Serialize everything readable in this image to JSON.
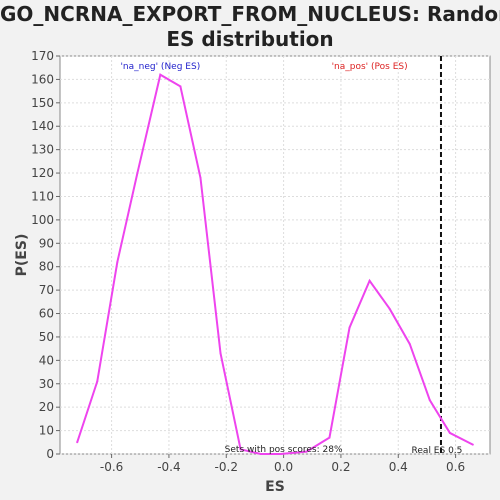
{
  "chart_data": {
    "type": "line",
    "title_line1": "GO_NCRNA_EXPORT_FROM_NUCLEUS: Random",
    "title_line2": "ES distribution",
    "xlabel": "ES",
    "ylabel": "P(ES)",
    "xlim": [
      -0.78,
      0.72
    ],
    "ylim": [
      0,
      170
    ],
    "x_ticks": [
      -0.6,
      -0.4,
      -0.2,
      0.0,
      0.2,
      0.4,
      0.6
    ],
    "x_tick_labels": [
      "-0.6",
      "-0.4",
      "-0.2",
      "0.0",
      "0.2",
      "0.4",
      "0.6"
    ],
    "y_ticks": [
      0,
      10,
      20,
      30,
      40,
      50,
      60,
      70,
      80,
      90,
      100,
      110,
      120,
      130,
      140,
      150,
      160,
      170
    ],
    "grid": true,
    "series": [
      {
        "color": "#ee44ee",
        "x": [
          -0.72,
          -0.65,
          -0.58,
          -0.51,
          -0.43,
          -0.36,
          -0.29,
          -0.22,
          -0.15,
          -0.08,
          -0.01,
          0.08,
          0.16,
          0.23,
          0.3,
          0.37,
          0.44,
          0.51,
          0.58,
          0.66
        ],
        "y": [
          5,
          31,
          82,
          120,
          162,
          157,
          118,
          43,
          2,
          0,
          0,
          1,
          7,
          54,
          74,
          62,
          47,
          23,
          9,
          4
        ]
      }
    ],
    "annotations": {
      "neg_label": "'na_neg' (Neg ES)",
      "neg_color": "#2222cc",
      "pos_label": "'na_pos' (Pos ES)",
      "pos_color": "#dd2222",
      "pos_scores_note": "Sets with pos scores: 28%",
      "real_es_label": "Real ES 0.5",
      "real_es_value": 0.549
    }
  }
}
